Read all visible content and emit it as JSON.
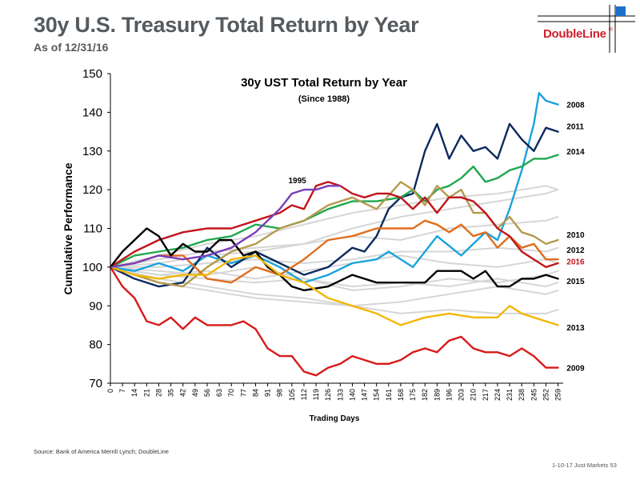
{
  "page": {
    "title": "30y U.S. Treasury Total Return by Year",
    "subtitle": "As of 12/31/16",
    "logo_text": "DoubleLine",
    "logo_mark": "®",
    "source": "Source: Bank of America Merrill Lynch; DoubleLine",
    "footer": "1-10-17 Just Markets  53"
  },
  "colors": {
    "y2008": "#1aa3dd",
    "y2011": "#0d2a5e",
    "y2014": "#1ea84e",
    "y2010": "#b59a4e",
    "y2012": "#e06d1e",
    "y2016": "#c0161c",
    "y2015": "#000000",
    "y2013": "#f2b705",
    "y2009": "#d81a1a",
    "y1995": "#7a3db8",
    "other": "#d6d6d6",
    "logo_red": "#d0202e",
    "logo_blue": "#1f6fcd"
  },
  "chart_data": {
    "type": "line",
    "title": "30y UST Total Return by Year",
    "subtitle": "(Since 1988)",
    "xlabel": "Trading Days",
    "ylabel": "Cumulative Performance",
    "xlim": [
      0,
      262
    ],
    "ylim": [
      70,
      150
    ],
    "yticks": [
      70,
      80,
      90,
      100,
      110,
      120,
      130,
      140,
      150
    ],
    "xticks": [
      0,
      7,
      14,
      21,
      28,
      35,
      42,
      49,
      56,
      63,
      70,
      77,
      84,
      91,
      98,
      105,
      112,
      119,
      126,
      133,
      140,
      147,
      154,
      161,
      168,
      175,
      182,
      189,
      196,
      203,
      210,
      217,
      224,
      231,
      238,
      245,
      252,
      259
    ],
    "grid": false,
    "legend": "inline labels at right",
    "series": [
      {
        "name": "2008",
        "x": [
          0,
          14,
          28,
          42,
          56,
          70,
          84,
          98,
          112,
          126,
          140,
          154,
          161,
          175,
          189,
          203,
          217,
          224,
          231,
          238,
          245,
          248,
          252,
          259
        ],
        "y": [
          100,
          99,
          101,
          99,
          103,
          101,
          103,
          100,
          96,
          98,
          101,
          102,
          104,
          100,
          108,
          103,
          109,
          107,
          115,
          125,
          137,
          145,
          143,
          142
        ]
      },
      {
        "name": "2011",
        "x": [
          0,
          14,
          28,
          42,
          56,
          70,
          84,
          98,
          112,
          126,
          140,
          147,
          154,
          161,
          168,
          175,
          182,
          189,
          196,
          203,
          210,
          217,
          224,
          231,
          238,
          245,
          252,
          259
        ],
        "y": [
          100,
          97,
          95,
          96,
          105,
          100,
          104,
          101,
          98,
          100,
          105,
          104,
          108,
          115,
          118,
          119,
          130,
          137,
          128,
          134,
          130,
          131,
          128,
          137,
          133,
          130,
          136,
          135
        ]
      },
      {
        "name": "2014",
        "x": [
          0,
          14,
          28,
          42,
          56,
          70,
          84,
          98,
          112,
          126,
          140,
          154,
          168,
          175,
          182,
          189,
          196,
          203,
          210,
          217,
          224,
          231,
          238,
          245,
          252,
          259
        ],
        "y": [
          100,
          103,
          104,
          105,
          107,
          108,
          111,
          110,
          112,
          115,
          117,
          117,
          118,
          120,
          117,
          120,
          121,
          123,
          126,
          122,
          123,
          125,
          126,
          128,
          128,
          129
        ]
      },
      {
        "name": "2010",
        "x": [
          0,
          14,
          28,
          42,
          56,
          70,
          84,
          98,
          112,
          126,
          140,
          154,
          168,
          175,
          182,
          189,
          196,
          203,
          210,
          217,
          224,
          231,
          238,
          245,
          252,
          259
        ],
        "y": [
          100,
          98,
          96,
          95,
          100,
          104,
          106,
          110,
          112,
          116,
          118,
          115,
          122,
          120,
          116,
          121,
          118,
          120,
          114,
          114,
          110,
          113,
          109,
          108,
          106,
          107
        ]
      },
      {
        "name": "2012",
        "x": [
          0,
          14,
          28,
          42,
          56,
          70,
          84,
          98,
          112,
          126,
          140,
          154,
          168,
          175,
          182,
          189,
          196,
          203,
          210,
          217,
          224,
          231,
          238,
          245,
          252,
          259
        ],
        "y": [
          100,
          101,
          103,
          103,
          97,
          96,
          100,
          98,
          102,
          107,
          108,
          110,
          110,
          110,
          112,
          111,
          109,
          111,
          108,
          109,
          105,
          108,
          105,
          106,
          102,
          102
        ]
      },
      {
        "name": "2016",
        "x": [
          0,
          14,
          28,
          42,
          56,
          70,
          84,
          98,
          105,
          112,
          119,
          126,
          133,
          140,
          147,
          154,
          161,
          168,
          175,
          182,
          189,
          196,
          203,
          210,
          217,
          224,
          231,
          238,
          245,
          252,
          259
        ],
        "y": [
          100,
          104,
          107,
          109,
          110,
          110,
          112,
          114,
          116,
          115,
          121,
          122,
          121,
          119,
          118,
          119,
          119,
          118,
          115,
          118,
          114,
          118,
          118,
          117,
          114,
          110,
          108,
          104,
          102,
          100,
          101
        ]
      },
      {
        "name": "2015",
        "x": [
          0,
          7,
          14,
          21,
          28,
          35,
          42,
          49,
          56,
          63,
          70,
          77,
          84,
          91,
          98,
          105,
          112,
          126,
          140,
          154,
          168,
          182,
          189,
          196,
          203,
          210,
          217,
          224,
          231,
          238,
          245,
          252,
          259
        ],
        "y": [
          100,
          104,
          107,
          110,
          108,
          103,
          106,
          104,
          104,
          107,
          107,
          103,
          104,
          100,
          98,
          95,
          94,
          95,
          98,
          96,
          96,
          96,
          99,
          99,
          99,
          97,
          99,
          95,
          95,
          97,
          97,
          98,
          97
        ]
      },
      {
        "name": "2013",
        "x": [
          0,
          14,
          28,
          42,
          56,
          70,
          84,
          98,
          112,
          126,
          140,
          154,
          168,
          182,
          196,
          210,
          224,
          231,
          238,
          245,
          252,
          259
        ],
        "y": [
          100,
          98,
          97,
          98,
          98,
          102,
          103,
          98,
          96,
          92,
          90,
          88,
          85,
          87,
          88,
          87,
          87,
          90,
          88,
          87,
          86,
          85
        ]
      },
      {
        "name": "2009",
        "x": [
          0,
          7,
          14,
          21,
          28,
          35,
          42,
          49,
          56,
          63,
          70,
          77,
          84,
          91,
          98,
          105,
          112,
          119,
          126,
          133,
          140,
          147,
          154,
          161,
          168,
          175,
          182,
          189,
          196,
          203,
          210,
          217,
          224,
          231,
          238,
          245,
          252,
          259
        ],
        "y": [
          100,
          95,
          92,
          86,
          85,
          87,
          84,
          87,
          85,
          85,
          85,
          86,
          84,
          79,
          77,
          77,
          73,
          72,
          74,
          75,
          77,
          76,
          75,
          75,
          76,
          78,
          79,
          78,
          81,
          82,
          79,
          78,
          78,
          77,
          79,
          77,
          74,
          74
        ]
      },
      {
        "name": "1995",
        "x": [
          0,
          14,
          28,
          42,
          56,
          70,
          84,
          91,
          98,
          105,
          112,
          119,
          126,
          133
        ],
        "y": [
          100,
          101,
          103,
          102,
          103,
          105,
          109,
          112,
          115,
          119,
          120,
          120,
          121,
          121
        ]
      },
      {
        "name": "",
        "x": [
          0,
          28,
          56,
          84,
          112,
          140,
          168,
          196,
          224,
          252,
          259
        ],
        "y": [
          100,
          98,
          97,
          96,
          97,
          95,
          96,
          95,
          97,
          95,
          96
        ]
      },
      {
        "name": "",
        "x": [
          0,
          28,
          56,
          84,
          112,
          140,
          168,
          196,
          224,
          252,
          259
        ],
        "y": [
          100,
          101,
          103,
          104,
          106,
          110,
          113,
          115,
          117,
          119,
          120
        ]
      },
      {
        "name": "",
        "x": [
          0,
          28,
          56,
          84,
          112,
          140,
          168,
          196,
          224,
          252,
          259
        ],
        "y": [
          100,
          99,
          98,
          100,
          97,
          94,
          95,
          97,
          96,
          98,
          99
        ]
      },
      {
        "name": "",
        "x": [
          0,
          28,
          56,
          84,
          112,
          140,
          168,
          196,
          224,
          252,
          259
        ],
        "y": [
          100,
          97,
          95,
          93,
          92,
          90,
          91,
          93,
          95,
          93,
          94
        ]
      },
      {
        "name": "",
        "x": [
          0,
          28,
          56,
          84,
          112,
          140,
          168,
          196,
          224,
          252,
          259
        ],
        "y": [
          100,
          102,
          104,
          105,
          106,
          108,
          107,
          110,
          111,
          112,
          113
        ]
      },
      {
        "name": "",
        "x": [
          0,
          28,
          56,
          84,
          112,
          140,
          168,
          196,
          224,
          252,
          259
        ],
        "y": [
          100,
          96,
          94,
          92,
          91,
          90,
          88,
          89,
          88,
          88,
          89
        ]
      },
      {
        "name": "",
        "x": [
          0,
          28,
          56,
          84,
          112,
          140,
          168,
          196,
          224,
          252,
          259
        ],
        "y": [
          100,
          103,
          106,
          108,
          111,
          114,
          116,
          118,
          119,
          121,
          120
        ]
      },
      {
        "name": "",
        "x": [
          0,
          28,
          56,
          84,
          112,
          140,
          168,
          196,
          224,
          252,
          259
        ],
        "y": [
          100,
          100,
          101,
          102,
          101,
          102,
          104,
          104,
          105,
          104,
          105
        ]
      },
      {
        "name": "",
        "x": [
          0,
          28,
          56,
          84,
          112,
          140,
          168,
          196,
          224,
          252,
          259
        ],
        "y": [
          100,
          98,
          99,
          97,
          99,
          101,
          103,
          101,
          100,
          102,
          101
        ]
      }
    ],
    "labels": [
      {
        "text": "2008",
        "series": "2008",
        "x": 264,
        "y": 142,
        "color": "#000000"
      },
      {
        "text": "2011",
        "series": "2011",
        "x": 264,
        "y": 136.5,
        "color": "#000000"
      },
      {
        "text": "2014",
        "series": "2014",
        "x": 264,
        "y": 130,
        "color": "#000000"
      },
      {
        "text": "2010",
        "series": "2010",
        "x": 264,
        "y": 108.5,
        "color": "#000000"
      },
      {
        "text": "2012",
        "series": "2012",
        "x": 264,
        "y": 104.5,
        "color": "#000000"
      },
      {
        "text": "2016",
        "series": "2016",
        "x": 264,
        "y": 101.5,
        "color": "#c0161c"
      },
      {
        "text": "2015",
        "series": "2015",
        "x": 264,
        "y": 96.5,
        "color": "#000000"
      },
      {
        "text": "2013",
        "series": "2013",
        "x": 264,
        "y": 84.5,
        "color": "#000000"
      },
      {
        "text": "2009",
        "series": "2009",
        "x": 264,
        "y": 74,
        "color": "#000000"
      },
      {
        "text": "1995",
        "series": "1995",
        "x": 103,
        "y": 122.5,
        "color": "#000000"
      }
    ]
  }
}
